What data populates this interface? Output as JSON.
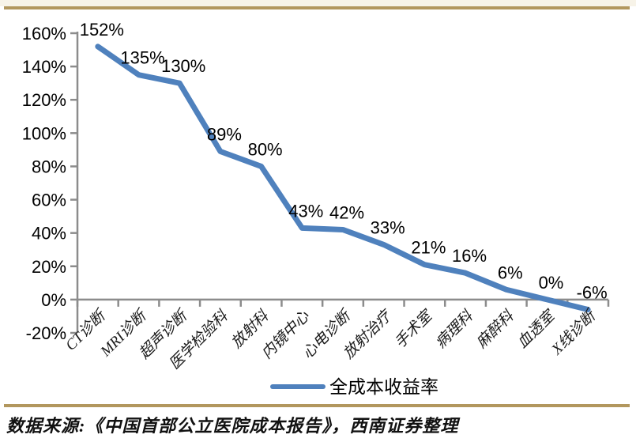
{
  "page": {
    "background_color": "#ffffff",
    "top_strip_color": "#f7f3e8",
    "divider_color": "#b2975e"
  },
  "chart_data": {
    "type": "line",
    "title": "",
    "legend": "全成本收益率",
    "legend_position": "bottom-center",
    "categories": [
      "CT诊断",
      "MRI诊断",
      "超声诊断",
      "医学检验科",
      "放射科",
      "内镜中心",
      "心电诊断",
      "放射治疗",
      "手术室",
      "病理科",
      "麻醉科",
      "血透室",
      "X线诊断"
    ],
    "values": [
      152,
      135,
      130,
      89,
      80,
      43,
      42,
      33,
      21,
      16,
      6,
      0,
      -6
    ],
    "data_labels": [
      "152%",
      "135%",
      "130%",
      "89%",
      "80%",
      "43%",
      "42%",
      "33%",
      "21%",
      "16%",
      "6%",
      "0%",
      "-6%"
    ],
    "xlabel": "",
    "ylabel": "",
    "ylim": [
      -20,
      160
    ],
    "y_ticks": [
      {
        "value": 160,
        "label": "160%"
      },
      {
        "value": 140,
        "label": "140%"
      },
      {
        "value": 120,
        "label": "120%"
      },
      {
        "value": 100,
        "label": "100%"
      },
      {
        "value": 80,
        "label": "80%"
      },
      {
        "value": 60,
        "label": "60%"
      },
      {
        "value": 40,
        "label": "40%"
      },
      {
        "value": 20,
        "label": "20%"
      },
      {
        "value": 0,
        "label": "0%"
      },
      {
        "value": -20,
        "label": "-20%"
      }
    ],
    "grid": false,
    "line_color": "#4f81bd",
    "axis_color": "#8c8c8c",
    "label_color": "#000000"
  },
  "footer": {
    "source": "数据来源:《中国首部公立医院成本报告》，西南证券整理"
  }
}
